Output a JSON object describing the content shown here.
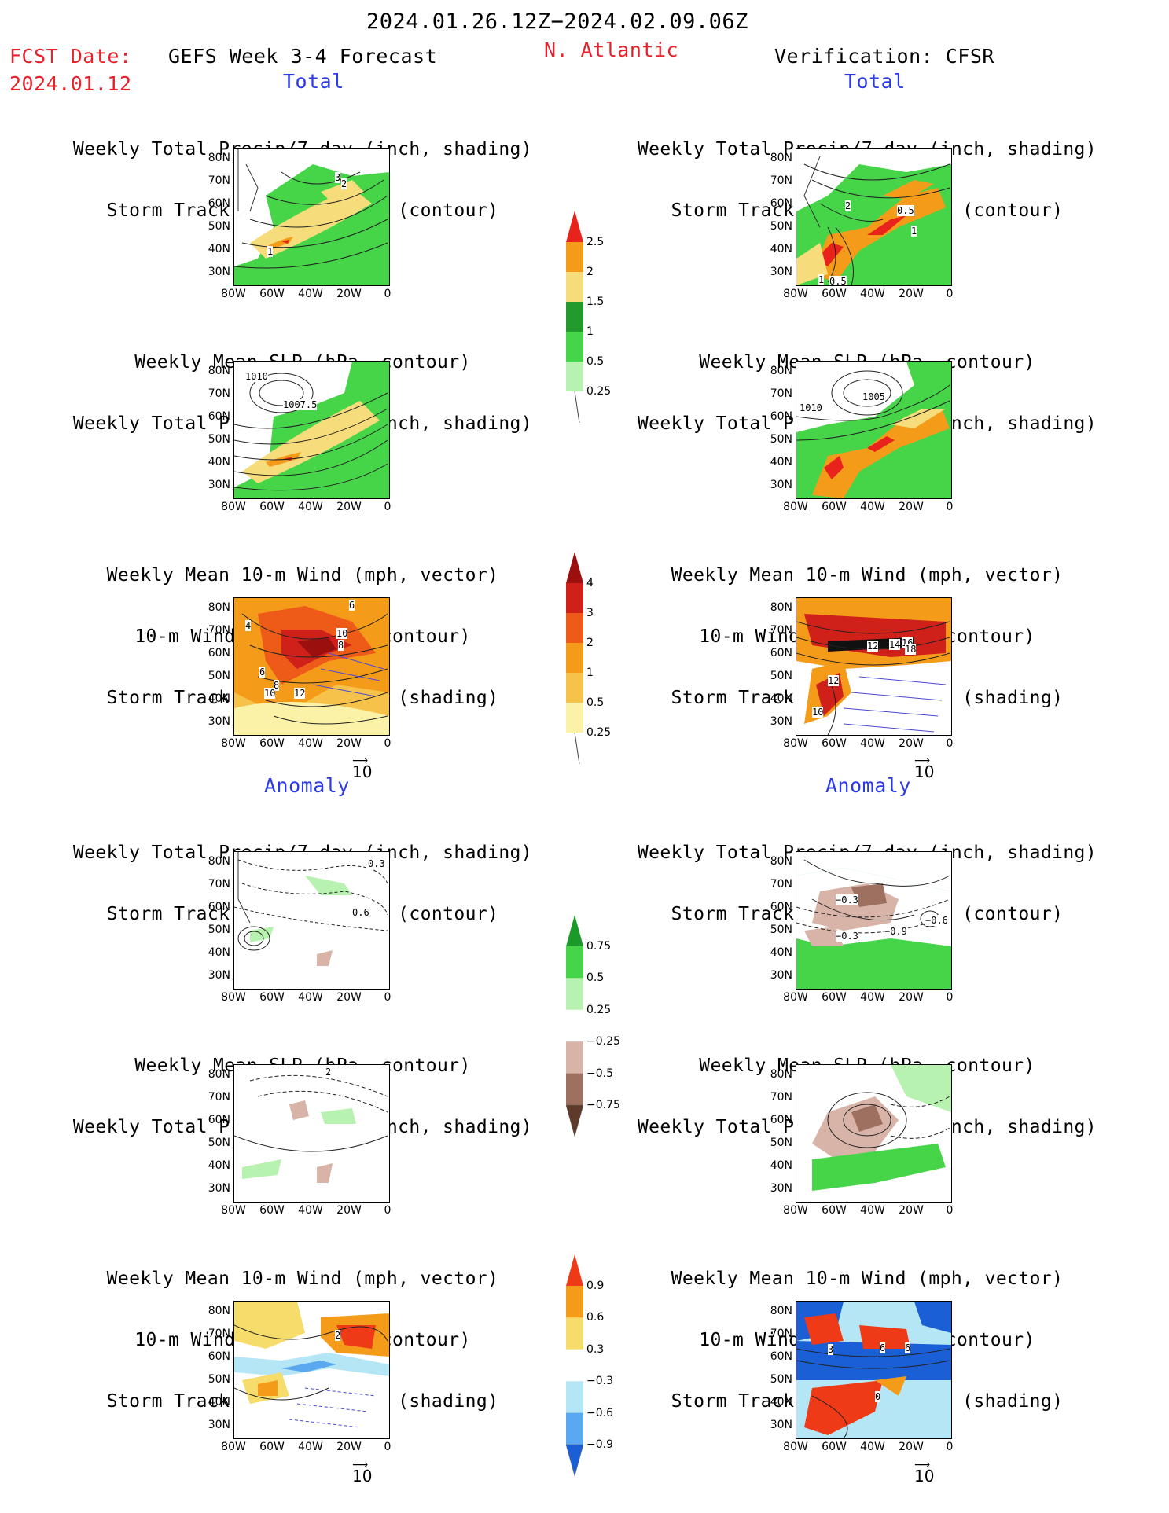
{
  "header": {
    "date_range": "2024.01.26.12Z−2024.02.09.06Z",
    "fcst_label": "FCST Date:",
    "fcst_date": "2024.01.12",
    "forecast_title": "GEFS Week 3-4 Forecast",
    "region": "N. Atlantic",
    "verification": "Verification: CFSR"
  },
  "section_labels": {
    "total": "Total",
    "anomaly": "Anomaly"
  },
  "panel_titles": {
    "precip_storm": [
      "Weekly Total Precip/7-day (inch, shading)",
      "Storm Track Density/7-day (contour)"
    ],
    "slp_precip": [
      "Weekly Mean SLP (hPa, contour)",
      "Weekly Total Precip/7-day (inch, shading)"
    ],
    "wind": [
      "Weekly Mean 10-m Wind (mph, vector)",
      "10-m Wind Speed (mph, contour)",
      "Storm Track Density/7-day (shading)"
    ]
  },
  "axes": {
    "lat_ticks": [
      "80N",
      "70N",
      "60N",
      "50N",
      "40N",
      "30N"
    ],
    "lon_ticks": [
      "80W",
      "60W",
      "40W",
      "20W",
      "0"
    ]
  },
  "vector_reference": "10",
  "colorbars": {
    "precip_total": {
      "labels": [
        "2.5",
        "2",
        "1.5",
        "1",
        "0.5",
        "0.25"
      ],
      "colors": [
        "#e8231b",
        "#f59b1a",
        "#f6dc7a",
        "#229a2e",
        "#46d548",
        "#b8f2b0"
      ]
    },
    "storm_total": {
      "labels": [
        "4",
        "3",
        "2",
        "1",
        "0.5",
        "0.25"
      ],
      "colors": [
        "#9c0f0f",
        "#d0201a",
        "#ee5a18",
        "#f59b1a",
        "#f7c24a",
        "#fbf2a8"
      ]
    },
    "precip_anom": {
      "labels": [
        "0.75",
        "0.5",
        "0.25",
        "−0.25",
        "−0.5",
        "−0.75"
      ],
      "colors": [
        "#1b9a2a",
        "#46d548",
        "#b8f2b0",
        "#ffffff",
        "#d8b4a8",
        "#9e7060",
        "#5e3a2a"
      ]
    },
    "storm_anom": {
      "labels": [
        "0.9",
        "0.6",
        "0.3",
        "−0.3",
        "−0.6",
        "−0.9"
      ],
      "colors": [
        "#ee3a16",
        "#f59b1a",
        "#f6dc6a",
        "#ffffff",
        "#b4e6f5",
        "#5aa8f0",
        "#1a5fd6"
      ]
    },
    "boundary": [
      "0.25",
      "0.5",
      "1",
      "1.5",
      "2",
      "2.5"
    ]
  },
  "contour_labels": {
    "fcst_precip": [
      "3",
      "2",
      "1"
    ],
    "verif_precip": [
      "2",
      "0.5",
      "1",
      "1",
      "0.5"
    ],
    "fcst_slp": [
      "1010",
      "1007.5"
    ],
    "verif_slp": [
      "1005",
      "1010"
    ],
    "fcst_wind": [
      "6",
      "4",
      "10",
      "8",
      "6",
      "8",
      "10",
      "12"
    ],
    "verif_wind": [
      "12",
      "14",
      "16",
      "18",
      "12",
      "10"
    ],
    "fcst_precip_anom": [
      "0.3",
      "0.6"
    ],
    "verif_precip_anom": [
      "−0.3",
      "−0.3",
      "−0.9",
      "−0.6"
    ],
    "fcst_slp_anom": [
      "2"
    ],
    "fcst_wind_anom": [
      "2"
    ],
    "verif_wind_anom": [
      "3",
      "6",
      "6",
      "0"
    ]
  }
}
